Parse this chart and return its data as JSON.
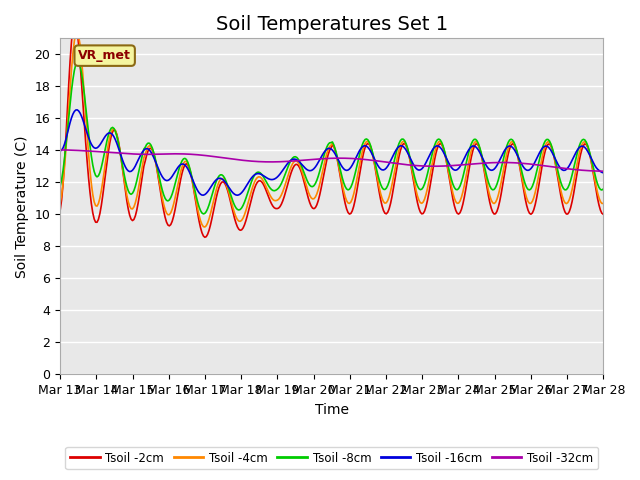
{
  "title": "Soil Temperatures Set 1",
  "xlabel": "Time",
  "ylabel": "Soil Temperature (C)",
  "ylim": [
    0,
    21
  ],
  "yticks": [
    0,
    2,
    4,
    6,
    8,
    10,
    12,
    14,
    16,
    18,
    20
  ],
  "date_labels": [
    "Mar 13",
    "Mar 14",
    "Mar 15",
    "Mar 16",
    "Mar 17",
    "Mar 18",
    "Mar 19",
    "Mar 20",
    "Mar 21",
    "Mar 22",
    "Mar 23",
    "Mar 24",
    "Mar 25",
    "Mar 26",
    "Mar 27",
    "Mar 28"
  ],
  "annotation_text": "VR_met",
  "colors": {
    "2cm": "#dd0000",
    "4cm": "#ff8800",
    "8cm": "#00cc00",
    "16cm": "#0000dd",
    "32cm": "#aa00aa"
  },
  "legend_labels": [
    "Tsoil -2cm",
    "Tsoil -4cm",
    "Tsoil -8cm",
    "Tsoil -16cm",
    "Tsoil -32cm"
  ],
  "background_color": "#e8e8e8",
  "grid_color": "#ffffff",
  "title_fontsize": 14,
  "axis_fontsize": 10,
  "tick_fontsize": 9
}
